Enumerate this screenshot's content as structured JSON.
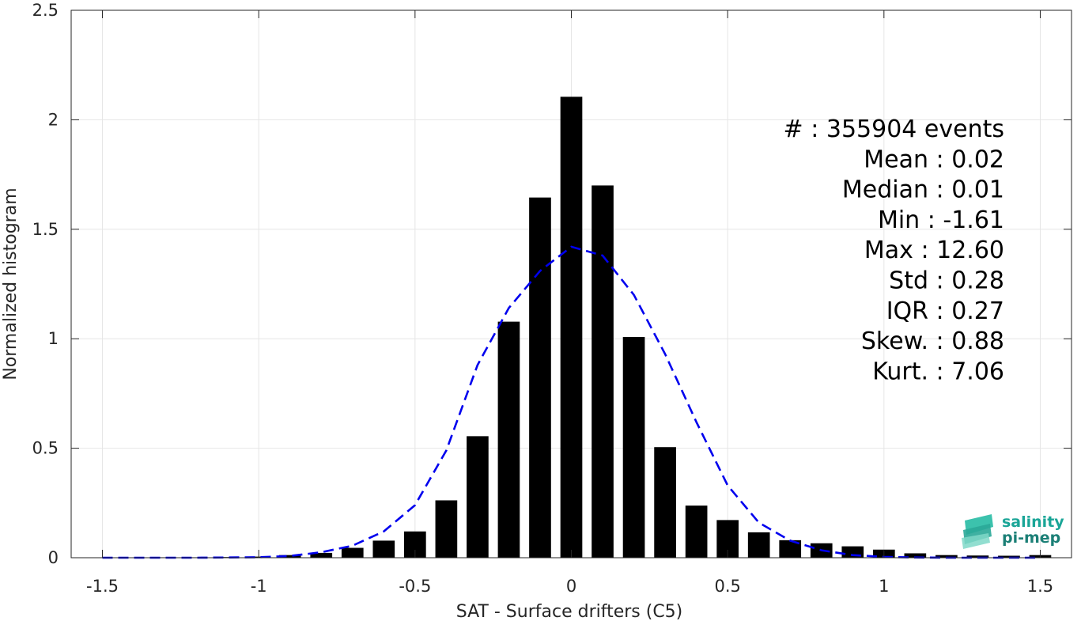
{
  "chart_data": {
    "type": "bar",
    "xlabel": "SAT - Surface drifters (C5)",
    "ylabel": "Normalized histogram",
    "xlim": [
      -1.6,
      1.6
    ],
    "ylim": [
      0,
      2.5
    ],
    "x_ticks": [
      -1.5,
      -1,
      -0.5,
      0,
      0.5,
      1,
      1.5
    ],
    "x_tick_labels": [
      "-1.5",
      "-1",
      "-0.5",
      "0",
      "0.5",
      "1",
      "1.5"
    ],
    "y_ticks": [
      0,
      0.5,
      1,
      1.5,
      2,
      2.5
    ],
    "y_tick_labels": [
      "0",
      "0.5",
      "1",
      "1.5",
      "2",
      "2.5"
    ],
    "grid": true,
    "bar_color": "#000000",
    "curve_color": "#0000ee",
    "bar_width": 0.07,
    "bars": {
      "x": [
        -1.5,
        -1.4,
        -1.3,
        -1.2,
        -1.1,
        -1.0,
        -0.9,
        -0.8,
        -0.7,
        -0.6,
        -0.5,
        -0.4,
        -0.3,
        -0.2,
        -0.1,
        0.0,
        0.1,
        0.2,
        0.3,
        0.4,
        0.5,
        0.6,
        0.7,
        0.8,
        0.9,
        1.0,
        1.1,
        1.2,
        1.3,
        1.4,
        1.5
      ],
      "values": [
        0.001,
        0.001,
        0.002,
        0.002,
        0.003,
        0.005,
        0.012,
        0.022,
        0.045,
        0.078,
        0.12,
        0.262,
        0.555,
        1.078,
        1.645,
        2.105,
        1.7,
        1.008,
        0.505,
        0.238,
        0.172,
        0.116,
        0.08,
        0.066,
        0.052,
        0.037,
        0.02,
        0.012,
        0.01,
        0.009,
        0.012
      ]
    },
    "fit_curve": {
      "style": "dashed",
      "x": [
        -1.5,
        -1.4,
        -1.3,
        -1.2,
        -1.1,
        -1.0,
        -0.9,
        -0.8,
        -0.7,
        -0.6,
        -0.5,
        -0.4,
        -0.3,
        -0.2,
        -0.1,
        0.0,
        0.1,
        0.2,
        0.3,
        0.4,
        0.5,
        0.6,
        0.7,
        0.8,
        0.9,
        1.0,
        1.1,
        1.2,
        1.3,
        1.4,
        1.5
      ],
      "y": [
        0.0,
        0.0,
        0.0,
        0.0,
        0.001,
        0.002,
        0.008,
        0.025,
        0.055,
        0.12,
        0.24,
        0.49,
        0.88,
        1.14,
        1.31,
        1.42,
        1.38,
        1.2,
        0.93,
        0.62,
        0.33,
        0.16,
        0.078,
        0.034,
        0.012,
        0.004,
        0.001,
        0.0,
        0.0,
        0.0,
        0.0
      ]
    },
    "stats": [
      "#  : 355904 events",
      "Mean : 0.02",
      "Median : 0.01",
      "Min : -1.61",
      "Max : 12.60",
      "Std : 0.28",
      "IQR : 0.27",
      "Skew. : 0.88",
      "Kurt. : 7.06"
    ]
  },
  "logo": {
    "line1": "salinity",
    "line2": "pi-mep",
    "color1": "#1aa597",
    "color2": "#1b7f76"
  }
}
